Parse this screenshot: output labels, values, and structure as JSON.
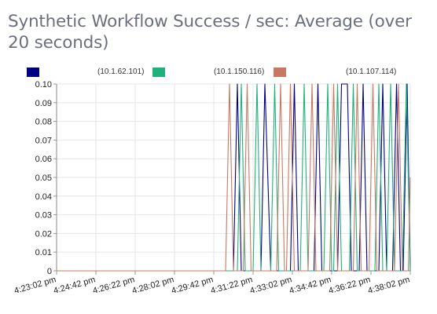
{
  "chart_data": {
    "type": "line",
    "title": "Synthetic Workflow Success / sec: Average (over 20 seconds)",
    "xlabel": "",
    "ylabel": "",
    "ylim": [
      0,
      0.1
    ],
    "yticks": [
      "0",
      "0.01",
      "0.02",
      "0.03",
      "0.04",
      "0.05",
      "0.06",
      "0.07",
      "0.08",
      "0.09",
      "0.10"
    ],
    "xticks": [
      "4:23:02 pm",
      "4:24:42 pm",
      "4:26:22 pm",
      "4:28:02 pm",
      "4:29:42 pm",
      "4:31:22 pm",
      "4:33:02 pm",
      "4:34:42 pm",
      "4:36:22 pm",
      "4:38:02 pm"
    ],
    "xlim_seconds": [
      0,
      900
    ],
    "grid": true,
    "legend_position": "top",
    "series": [
      {
        "name": "(10.1.62.101)",
        "color": "#000080",
        "points": [
          [
            0,
            0
          ],
          [
            450,
            0
          ],
          [
            460,
            0.1
          ],
          [
            470,
            0
          ],
          [
            520,
            0
          ],
          [
            530,
            0.1
          ],
          [
            545,
            0
          ],
          [
            595,
            0
          ],
          [
            605,
            0.1
          ],
          [
            615,
            0
          ],
          [
            655,
            0
          ],
          [
            665,
            0.1
          ],
          [
            675,
            0
          ],
          [
            715,
            0
          ],
          [
            725,
            0.1
          ],
          [
            740,
            0.1
          ],
          [
            750,
            0
          ],
          [
            770,
            0
          ],
          [
            780,
            0.1
          ],
          [
            790,
            0
          ],
          [
            820,
            0
          ],
          [
            830,
            0.1
          ],
          [
            840,
            0
          ],
          [
            855,
            0
          ],
          [
            865,
            0.1
          ],
          [
            875,
            0
          ],
          [
            882,
            0
          ],
          [
            892,
            0.1
          ],
          [
            900,
            0
          ]
        ]
      },
      {
        "name": "(10.1.150.116)",
        "color": "#20b07a",
        "points": [
          [
            0,
            0
          ],
          [
            460,
            0
          ],
          [
            470,
            0.1
          ],
          [
            480,
            0
          ],
          [
            500,
            0
          ],
          [
            510,
            0.1
          ],
          [
            520,
            0
          ],
          [
            545,
            0
          ],
          [
            555,
            0.1
          ],
          [
            565,
            0
          ],
          [
            620,
            0
          ],
          [
            630,
            0.1
          ],
          [
            640,
            0
          ],
          [
            680,
            0
          ],
          [
            690,
            0.1
          ],
          [
            700,
            0
          ],
          [
            705,
            0
          ],
          [
            715,
            0.1
          ],
          [
            725,
            0
          ],
          [
            745,
            0
          ],
          [
            755,
            0.1
          ],
          [
            765,
            0
          ],
          [
            810,
            0
          ],
          [
            820,
            0.1
          ],
          [
            830,
            0
          ],
          [
            840,
            0
          ],
          [
            850,
            0.1
          ],
          [
            860,
            0
          ],
          [
            880,
            0
          ],
          [
            890,
            0.1
          ],
          [
            900,
            0
          ]
        ]
      },
      {
        "name": "(10.1.107.114)",
        "color": "#c87862",
        "points": [
          [
            0,
            0
          ],
          [
            430,
            0
          ],
          [
            440,
            0.1
          ],
          [
            450,
            0
          ],
          [
            475,
            0
          ],
          [
            485,
            0.1
          ],
          [
            495,
            0
          ],
          [
            560,
            0
          ],
          [
            570,
            0.1
          ],
          [
            580,
            0
          ],
          [
            585,
            0
          ],
          [
            595,
            0.1
          ],
          [
            605,
            0
          ],
          [
            640,
            0
          ],
          [
            650,
            0.1
          ],
          [
            660,
            0
          ],
          [
            695,
            0
          ],
          [
            705,
            0.1
          ],
          [
            715,
            0
          ],
          [
            755,
            0
          ],
          [
            765,
            0.1
          ],
          [
            775,
            0
          ],
          [
            795,
            0
          ],
          [
            805,
            0.1
          ],
          [
            815,
            0
          ],
          [
            860,
            0
          ],
          [
            870,
            0.1
          ],
          [
            880,
            0
          ],
          [
            895,
            0
          ],
          [
            900,
            0.05
          ]
        ]
      }
    ]
  }
}
